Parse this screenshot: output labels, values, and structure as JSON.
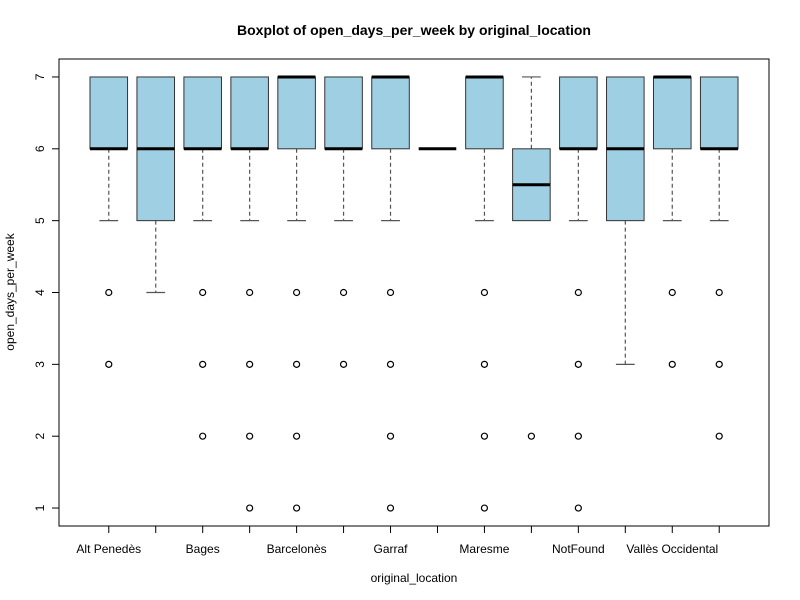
{
  "chart_data": {
    "type": "boxplot",
    "title": "Boxplot of open_days_per_week by original_location",
    "xlabel": "original_location",
    "ylabel": "open_days_per_week",
    "ylim": [
      0.75,
      7.25
    ],
    "yticks": [
      1,
      2,
      3,
      4,
      5,
      6,
      7
    ],
    "grid": false,
    "colors": {
      "box_fill": "#9ecfe2",
      "stroke": "#000000",
      "whisker": "#555555"
    },
    "categories": [
      {
        "label": "Alt Penedès",
        "show_label": true,
        "q1": 6,
        "median": 6,
        "q3": 7,
        "whisker_low": 5,
        "whisker_high": 7,
        "outliers": [
          4,
          3
        ]
      },
      {
        "label": "",
        "show_label": false,
        "q1": 5,
        "median": 6,
        "q3": 7,
        "whisker_low": 4,
        "whisker_high": 7,
        "outliers": []
      },
      {
        "label": "Bages",
        "show_label": true,
        "q1": 6,
        "median": 6,
        "q3": 7,
        "whisker_low": 5,
        "whisker_high": 7,
        "outliers": [
          4,
          3,
          2
        ]
      },
      {
        "label": "",
        "show_label": false,
        "q1": 6,
        "median": 6,
        "q3": 7,
        "whisker_low": 5,
        "whisker_high": 7,
        "outliers": [
          4,
          3,
          2,
          1
        ]
      },
      {
        "label": "Barcelonès",
        "show_label": true,
        "q1": 6,
        "median": 7,
        "q3": 7,
        "whisker_low": 5,
        "whisker_high": 7,
        "outliers": [
          4,
          3,
          2,
          1
        ]
      },
      {
        "label": "",
        "show_label": false,
        "q1": 6,
        "median": 6,
        "q3": 7,
        "whisker_low": 5,
        "whisker_high": 7,
        "outliers": [
          4,
          3
        ]
      },
      {
        "label": "Garraf",
        "show_label": true,
        "q1": 6,
        "median": 7,
        "q3": 7,
        "whisker_low": 5,
        "whisker_high": 7,
        "outliers": [
          4,
          3,
          2,
          1
        ]
      },
      {
        "label": "",
        "show_label": false,
        "q1": 6,
        "median": 6,
        "q3": 6,
        "whisker_low": 6,
        "whisker_high": 6,
        "outliers": []
      },
      {
        "label": "Maresme",
        "show_label": true,
        "q1": 6,
        "median": 7,
        "q3": 7,
        "whisker_low": 5,
        "whisker_high": 7,
        "outliers": [
          4,
          3,
          2,
          1
        ]
      },
      {
        "label": "",
        "show_label": false,
        "q1": 5,
        "median": 5.5,
        "q3": 6,
        "whisker_low": 5,
        "whisker_high": 7,
        "outliers": [
          2
        ]
      },
      {
        "label": "NotFound",
        "show_label": true,
        "q1": 6,
        "median": 6,
        "q3": 7,
        "whisker_low": 5,
        "whisker_high": 7,
        "outliers": [
          4,
          3,
          2,
          1
        ]
      },
      {
        "label": "",
        "show_label": false,
        "q1": 5,
        "median": 6,
        "q3": 7,
        "whisker_low": 3,
        "whisker_high": 7,
        "outliers": []
      },
      {
        "label": "Vallès Occidental",
        "show_label": true,
        "q1": 6,
        "median": 7,
        "q3": 7,
        "whisker_low": 5,
        "whisker_high": 7,
        "outliers": [
          4,
          3
        ]
      },
      {
        "label": "",
        "show_label": false,
        "q1": 6,
        "median": 6,
        "q3": 7,
        "whisker_low": 5,
        "whisker_high": 7,
        "outliers": [
          4,
          3,
          2
        ]
      }
    ]
  }
}
